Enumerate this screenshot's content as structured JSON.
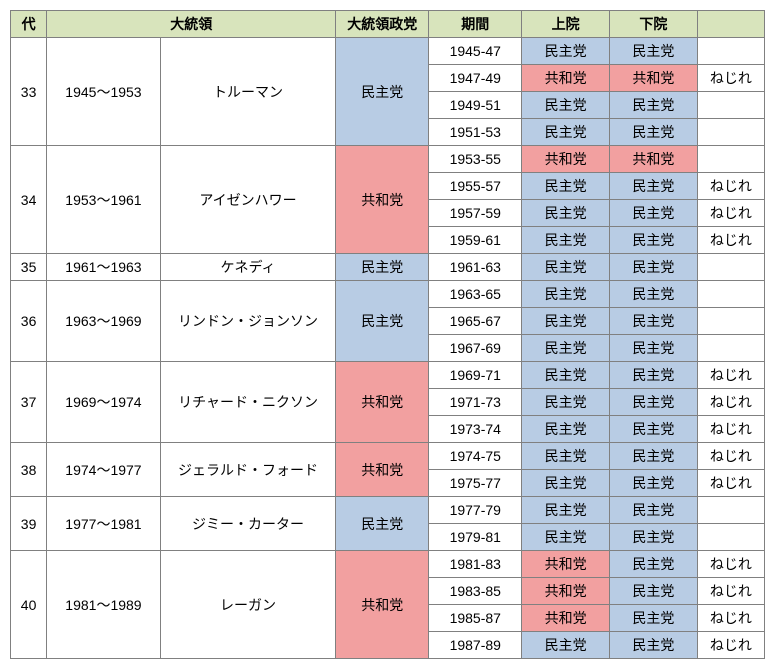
{
  "colors": {
    "header_bg": "#d8e4bc",
    "dem_bg": "#b8cce4",
    "rep_bg": "#f2a0a0",
    "white_bg": "#ffffff"
  },
  "col_widths": [
    "35px",
    "110px",
    "170px",
    "90px",
    "90px",
    "85px",
    "85px",
    "65px"
  ],
  "headers": [
    "代",
    "大統領",
    "大統領政党",
    "期間",
    "上院",
    "下院",
    ""
  ],
  "header_colspans": [
    1,
    2,
    1,
    1,
    1,
    1,
    1
  ],
  "labels": {
    "dem": "民主党",
    "rep": "共和党",
    "twist": "ねじれ"
  },
  "presidents": [
    {
      "num": "33",
      "years": "1945～1953",
      "name": "トルーマン",
      "party": "dem",
      "rows": [
        {
          "period": "1945-47",
          "senate": "dem",
          "house": "dem",
          "twist": ""
        },
        {
          "period": "1947-49",
          "senate": "rep",
          "house": "rep",
          "twist": "ねじれ"
        },
        {
          "period": "1949-51",
          "senate": "dem",
          "house": "dem",
          "twist": ""
        },
        {
          "period": "1951-53",
          "senate": "dem",
          "house": "dem",
          "twist": ""
        }
      ]
    },
    {
      "num": "34",
      "years": "1953～1961",
      "name": "アイゼンハワー",
      "party": "rep",
      "rows": [
        {
          "period": "1953-55",
          "senate": "rep",
          "house": "rep",
          "twist": ""
        },
        {
          "period": "1955-57",
          "senate": "dem",
          "house": "dem",
          "twist": "ねじれ"
        },
        {
          "period": "1957-59",
          "senate": "dem",
          "house": "dem",
          "twist": "ねじれ"
        },
        {
          "period": "1959-61",
          "senate": "dem",
          "house": "dem",
          "twist": "ねじれ"
        }
      ]
    },
    {
      "num": "35",
      "years": "1961～1963",
      "name": "ケネディ",
      "party": "dem",
      "rows": [
        {
          "period": "1961-63",
          "senate": "dem",
          "house": "dem",
          "twist": ""
        }
      ]
    },
    {
      "num": "36",
      "years": "1963～1969",
      "name": "リンドン・ジョンソン",
      "party": "dem",
      "rows": [
        {
          "period": "1963-65",
          "senate": "dem",
          "house": "dem",
          "twist": ""
        },
        {
          "period": "1965-67",
          "senate": "dem",
          "house": "dem",
          "twist": ""
        },
        {
          "period": "1967-69",
          "senate": "dem",
          "house": "dem",
          "twist": ""
        }
      ]
    },
    {
      "num": "37",
      "years": "1969～1974",
      "name": "リチャード・ニクソン",
      "party": "rep",
      "rows": [
        {
          "period": "1969-71",
          "senate": "dem",
          "house": "dem",
          "twist": "ねじれ"
        },
        {
          "period": "1971-73",
          "senate": "dem",
          "house": "dem",
          "twist": "ねじれ"
        },
        {
          "period": "1973-74",
          "senate": "dem",
          "house": "dem",
          "twist": "ねじれ"
        }
      ]
    },
    {
      "num": "38",
      "years": "1974～1977",
      "name": "ジェラルド・フォード",
      "party": "rep",
      "rows": [
        {
          "period": "1974-75",
          "senate": "dem",
          "house": "dem",
          "twist": "ねじれ"
        },
        {
          "period": "1975-77",
          "senate": "dem",
          "house": "dem",
          "twist": "ねじれ"
        }
      ]
    },
    {
      "num": "39",
      "years": "1977～1981",
      "name": "ジミー・カーター",
      "party": "dem",
      "rows": [
        {
          "period": "1977-79",
          "senate": "dem",
          "house": "dem",
          "twist": ""
        },
        {
          "period": "1979-81",
          "senate": "dem",
          "house": "dem",
          "twist": ""
        }
      ]
    },
    {
      "num": "40",
      "years": "1981～1989",
      "name": "レーガン",
      "party": "rep",
      "rows": [
        {
          "period": "1981-83",
          "senate": "rep",
          "house": "dem",
          "twist": "ねじれ"
        },
        {
          "period": "1983-85",
          "senate": "rep",
          "house": "dem",
          "twist": "ねじれ"
        },
        {
          "period": "1985-87",
          "senate": "rep",
          "house": "dem",
          "twist": "ねじれ"
        },
        {
          "period": "1987-89",
          "senate": "dem",
          "house": "dem",
          "twist": "ねじれ"
        }
      ]
    }
  ]
}
